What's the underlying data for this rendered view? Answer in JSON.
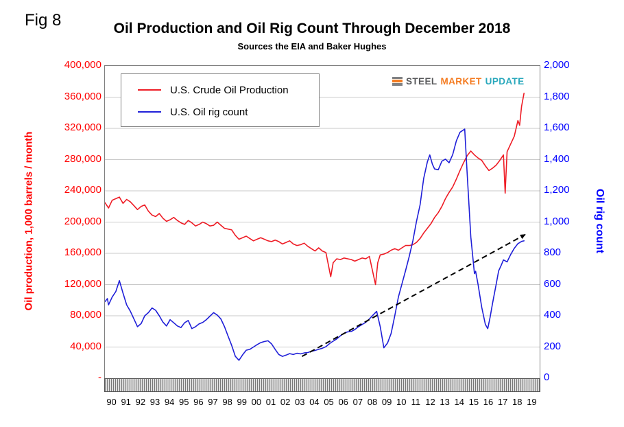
{
  "ui": {
    "fig_label": "Fig 8",
    "title": "Oil Production and Oil Rig Count Through December 2018",
    "subtitle": "Sources the EIA and Baker Hughes",
    "logo": {
      "parts": [
        {
          "text": "STEEL",
          "color": "#58595b"
        },
        {
          "text": "MARKET",
          "color": "#f47b20"
        },
        {
          "text": "UPDATE",
          "color": "#29a8bc"
        }
      ]
    }
  },
  "chart_data": {
    "type": "line",
    "title": "Oil Production and Oil Rig Count Through December 2018",
    "subtitle": "Sources the EIA and Baker Hughes",
    "grid": "horizontal",
    "legend_position": "top-left-inside",
    "x_axis": {
      "min": 1990,
      "max": 2020,
      "year_labels": [
        "90",
        "91",
        "92",
        "93",
        "94",
        "95",
        "96",
        "97",
        "98",
        "99",
        "00",
        "01",
        "02",
        "03",
        "04",
        "05",
        "06",
        "07",
        "08",
        "09",
        "10",
        "11",
        "12",
        "13",
        "14",
        "15",
        "16",
        "17",
        "18",
        "19"
      ]
    },
    "left_axis": {
      "label": "Oil production, 1,000 barrels / month",
      "color": "#ff0000",
      "min": 0,
      "max": 400000,
      "step": 40000,
      "tick_labels": [
        "400,000",
        "360,000",
        "320,000",
        "280,000",
        "240,000",
        "200,000",
        "160,000",
        "120,000",
        "80,000",
        "40,000",
        "-"
      ]
    },
    "right_axis": {
      "label": "Oil rig count",
      "color": "#0000ff",
      "min": 0,
      "max": 2000,
      "step": 200,
      "tick_labels": [
        "2,000",
        "1,800",
        "1,600",
        "1,400",
        "1,200",
        "1,000",
        "800",
        "600",
        "400",
        "200",
        "0"
      ]
    },
    "annotation_arrow": {
      "style": "dashed",
      "color": "#000000",
      "axis": "right",
      "x1": 2003.6,
      "value1": 140,
      "x2": 2019.0,
      "value2": 920
    },
    "series": [
      {
        "name": "U.S. Crude Oil Production",
        "color": "#ee1c25",
        "axis": "left",
        "points": [
          [
            1990.0,
            225000
          ],
          [
            1990.25,
            218000
          ],
          [
            1990.5,
            228000
          ],
          [
            1990.75,
            230000
          ],
          [
            1991.0,
            232000
          ],
          [
            1991.25,
            224000
          ],
          [
            1991.5,
            229000
          ],
          [
            1991.75,
            226000
          ],
          [
            1992.0,
            221000
          ],
          [
            1992.25,
            216000
          ],
          [
            1992.5,
            220000
          ],
          [
            1992.75,
            222000
          ],
          [
            1993.0,
            214000
          ],
          [
            1993.25,
            209000
          ],
          [
            1993.5,
            207000
          ],
          [
            1993.75,
            211000
          ],
          [
            1994.0,
            205000
          ],
          [
            1994.25,
            201000
          ],
          [
            1994.5,
            203000
          ],
          [
            1994.75,
            206000
          ],
          [
            1995.0,
            202000
          ],
          [
            1995.25,
            199000
          ],
          [
            1995.5,
            197000
          ],
          [
            1995.75,
            202000
          ],
          [
            1996.0,
            199000
          ],
          [
            1996.25,
            195000
          ],
          [
            1996.5,
            197000
          ],
          [
            1996.75,
            200000
          ],
          [
            1997.0,
            198000
          ],
          [
            1997.25,
            195000
          ],
          [
            1997.5,
            196000
          ],
          [
            1997.75,
            200000
          ],
          [
            1998.0,
            196000
          ],
          [
            1998.25,
            192000
          ],
          [
            1998.5,
            191000
          ],
          [
            1998.75,
            190000
          ],
          [
            1999.0,
            183000
          ],
          [
            1999.25,
            178000
          ],
          [
            1999.5,
            180000
          ],
          [
            1999.75,
            182000
          ],
          [
            2000.0,
            179000
          ],
          [
            2000.25,
            176000
          ],
          [
            2000.5,
            178000
          ],
          [
            2000.75,
            180000
          ],
          [
            2001.0,
            178000
          ],
          [
            2001.25,
            176000
          ],
          [
            2001.5,
            175000
          ],
          [
            2001.75,
            177000
          ],
          [
            2002.0,
            175000
          ],
          [
            2002.25,
            172000
          ],
          [
            2002.5,
            174000
          ],
          [
            2002.75,
            176000
          ],
          [
            2003.0,
            172000
          ],
          [
            2003.25,
            170000
          ],
          [
            2003.5,
            171000
          ],
          [
            2003.75,
            173000
          ],
          [
            2004.0,
            169000
          ],
          [
            2004.25,
            166000
          ],
          [
            2004.5,
            163000
          ],
          [
            2004.75,
            167000
          ],
          [
            2005.0,
            163000
          ],
          [
            2005.25,
            161000
          ],
          [
            2005.58,
            130000
          ],
          [
            2005.75,
            148000
          ],
          [
            2006.0,
            153000
          ],
          [
            2006.25,
            152000
          ],
          [
            2006.5,
            154000
          ],
          [
            2006.75,
            153000
          ],
          [
            2007.0,
            152000
          ],
          [
            2007.25,
            150000
          ],
          [
            2007.5,
            152000
          ],
          [
            2007.75,
            154000
          ],
          [
            2008.0,
            153000
          ],
          [
            2008.25,
            156000
          ],
          [
            2008.67,
            120000
          ],
          [
            2008.83,
            148000
          ],
          [
            2009.0,
            158000
          ],
          [
            2009.25,
            159000
          ],
          [
            2009.5,
            161000
          ],
          [
            2009.75,
            164000
          ],
          [
            2010.0,
            166000
          ],
          [
            2010.25,
            164000
          ],
          [
            2010.5,
            167000
          ],
          [
            2010.75,
            170000
          ],
          [
            2011.0,
            170000
          ],
          [
            2011.25,
            171000
          ],
          [
            2011.5,
            174000
          ],
          [
            2011.75,
            179000
          ],
          [
            2012.0,
            186000
          ],
          [
            2012.25,
            192000
          ],
          [
            2012.5,
            198000
          ],
          [
            2012.75,
            206000
          ],
          [
            2013.0,
            212000
          ],
          [
            2013.25,
            220000
          ],
          [
            2013.5,
            230000
          ],
          [
            2013.75,
            238000
          ],
          [
            2014.0,
            245000
          ],
          [
            2014.25,
            255000
          ],
          [
            2014.5,
            266000
          ],
          [
            2014.75,
            276000
          ],
          [
            2015.0,
            285000
          ],
          [
            2015.25,
            291000
          ],
          [
            2015.5,
            286000
          ],
          [
            2015.75,
            282000
          ],
          [
            2016.0,
            279000
          ],
          [
            2016.25,
            272000
          ],
          [
            2016.5,
            266000
          ],
          [
            2016.75,
            269000
          ],
          [
            2017.0,
            273000
          ],
          [
            2017.25,
            279000
          ],
          [
            2017.5,
            286000
          ],
          [
            2017.62,
            237000
          ],
          [
            2017.75,
            290000
          ],
          [
            2018.0,
            300000
          ],
          [
            2018.25,
            310000
          ],
          [
            2018.5,
            330000
          ],
          [
            2018.62,
            324000
          ],
          [
            2018.75,
            348000
          ],
          [
            2018.92,
            365000
          ]
        ]
      },
      {
        "name": "U.S. Oil rig count",
        "color": "#1f1fd8",
        "axis": "right",
        "points": [
          [
            1990.0,
            490
          ],
          [
            1990.17,
            510
          ],
          [
            1990.25,
            470
          ],
          [
            1990.5,
            520
          ],
          [
            1990.75,
            555
          ],
          [
            1991.0,
            625
          ],
          [
            1991.25,
            545
          ],
          [
            1991.5,
            470
          ],
          [
            1991.75,
            430
          ],
          [
            1992.0,
            380
          ],
          [
            1992.25,
            330
          ],
          [
            1992.5,
            350
          ],
          [
            1992.75,
            400
          ],
          [
            1993.0,
            420
          ],
          [
            1993.25,
            450
          ],
          [
            1993.5,
            435
          ],
          [
            1993.75,
            400
          ],
          [
            1994.0,
            360
          ],
          [
            1994.25,
            335
          ],
          [
            1994.5,
            375
          ],
          [
            1994.75,
            355
          ],
          [
            1995.0,
            335
          ],
          [
            1995.25,
            325
          ],
          [
            1995.5,
            355
          ],
          [
            1995.75,
            370
          ],
          [
            1996.0,
            318
          ],
          [
            1996.25,
            330
          ],
          [
            1996.5,
            348
          ],
          [
            1996.75,
            358
          ],
          [
            1997.0,
            375
          ],
          [
            1997.25,
            398
          ],
          [
            1997.5,
            420
          ],
          [
            1997.75,
            405
          ],
          [
            1998.0,
            380
          ],
          [
            1998.25,
            330
          ],
          [
            1998.5,
            270
          ],
          [
            1998.75,
            210
          ],
          [
            1999.0,
            140
          ],
          [
            1999.25,
            115
          ],
          [
            1999.5,
            150
          ],
          [
            1999.75,
            180
          ],
          [
            2000.0,
            185
          ],
          [
            2000.25,
            200
          ],
          [
            2000.5,
            215
          ],
          [
            2000.75,
            228
          ],
          [
            2001.0,
            235
          ],
          [
            2001.25,
            240
          ],
          [
            2001.5,
            220
          ],
          [
            2001.75,
            185
          ],
          [
            2002.0,
            152
          ],
          [
            2002.25,
            140
          ],
          [
            2002.5,
            148
          ],
          [
            2002.75,
            158
          ],
          [
            2003.0,
            152
          ],
          [
            2003.25,
            160
          ],
          [
            2003.5,
            156
          ],
          [
            2003.75,
            162
          ],
          [
            2004.0,
            165
          ],
          [
            2004.25,
            172
          ],
          [
            2004.5,
            178
          ],
          [
            2004.75,
            185
          ],
          [
            2005.0,
            192
          ],
          [
            2005.25,
            202
          ],
          [
            2005.5,
            222
          ],
          [
            2005.75,
            238
          ],
          [
            2006.0,
            252
          ],
          [
            2006.25,
            272
          ],
          [
            2006.5,
            288
          ],
          [
            2006.75,
            297
          ],
          [
            2007.0,
            300
          ],
          [
            2007.25,
            312
          ],
          [
            2007.5,
            330
          ],
          [
            2007.75,
            344
          ],
          [
            2008.0,
            358
          ],
          [
            2008.25,
            380
          ],
          [
            2008.5,
            405
          ],
          [
            2008.75,
            428
          ],
          [
            2009.0,
            330
          ],
          [
            2009.25,
            195
          ],
          [
            2009.5,
            225
          ],
          [
            2009.75,
            287
          ],
          [
            2010.0,
            400
          ],
          [
            2010.25,
            520
          ],
          [
            2010.5,
            605
          ],
          [
            2010.75,
            690
          ],
          [
            2011.0,
            780
          ],
          [
            2011.25,
            880
          ],
          [
            2011.5,
            1005
          ],
          [
            2011.75,
            1110
          ],
          [
            2012.0,
            1280
          ],
          [
            2012.25,
            1385
          ],
          [
            2012.42,
            1430
          ],
          [
            2012.6,
            1370
          ],
          [
            2012.75,
            1340
          ],
          [
            2013.0,
            1335
          ],
          [
            2013.25,
            1390
          ],
          [
            2013.5,
            1403
          ],
          [
            2013.75,
            1380
          ],
          [
            2014.0,
            1432
          ],
          [
            2014.25,
            1520
          ],
          [
            2014.5,
            1575
          ],
          [
            2014.83,
            1595
          ],
          [
            2015.0,
            1310
          ],
          [
            2015.25,
            905
          ],
          [
            2015.5,
            670
          ],
          [
            2015.58,
            685
          ],
          [
            2015.75,
            600
          ],
          [
            2016.0,
            455
          ],
          [
            2016.25,
            345
          ],
          [
            2016.42,
            318
          ],
          [
            2016.58,
            390
          ],
          [
            2016.75,
            480
          ],
          [
            2017.0,
            602
          ],
          [
            2017.17,
            688
          ],
          [
            2017.33,
            720
          ],
          [
            2017.5,
            758
          ],
          [
            2017.75,
            745
          ],
          [
            2018.0,
            792
          ],
          [
            2018.25,
            832
          ],
          [
            2018.5,
            862
          ],
          [
            2018.75,
            876
          ],
          [
            2018.92,
            880
          ]
        ]
      }
    ]
  }
}
